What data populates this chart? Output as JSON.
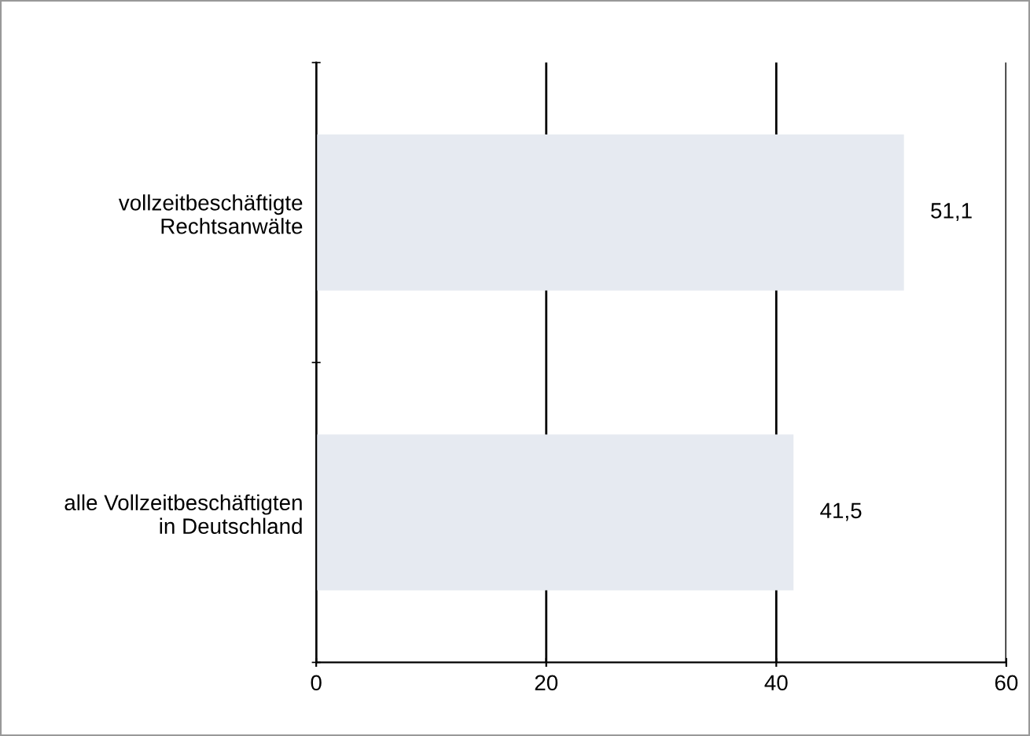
{
  "chart_data": {
    "type": "bar",
    "orientation": "horizontal",
    "categories": [
      "vollzeitbeschäftigte\nRechtsanwälte",
      "alle Vollzeitbeschäftigten\nin Deutschland"
    ],
    "values": [
      51.1,
      41.5
    ],
    "value_labels": [
      "51,1",
      "41,5"
    ],
    "color": "#e6eaf1",
    "xlim": [
      0,
      60
    ],
    "xticks": [
      0,
      20,
      40,
      60
    ],
    "grid": "x",
    "legend": false
  }
}
